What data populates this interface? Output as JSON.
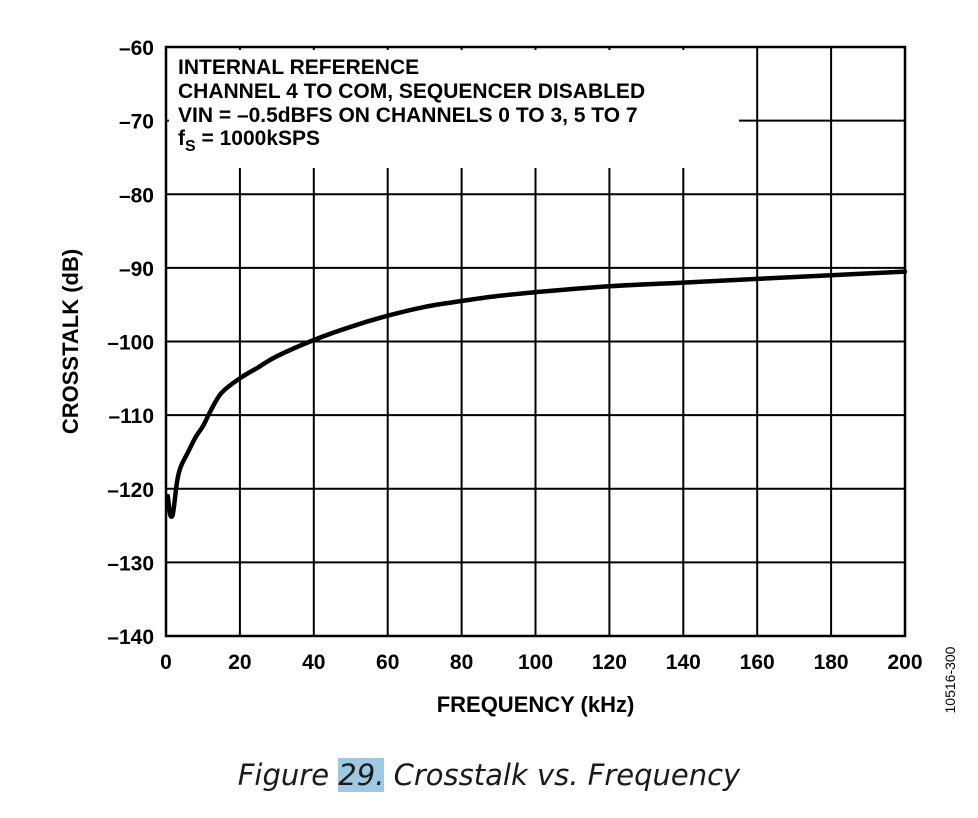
{
  "chart_data": {
    "type": "line",
    "title": "",
    "xlabel": "FREQUENCY (kHz)",
    "ylabel": "CROSSTALK (dB)",
    "xlim": [
      0,
      200
    ],
    "ylim": [
      -140,
      -60
    ],
    "xticks": [
      0,
      20,
      40,
      60,
      80,
      100,
      120,
      140,
      160,
      180,
      200
    ],
    "yticks": [
      -140,
      -130,
      -120,
      -110,
      -100,
      -90,
      -80,
      -70,
      -60
    ],
    "x_tick_labels": [
      "0",
      "20",
      "40",
      "60",
      "80",
      "100",
      "120",
      "140",
      "160",
      "180",
      "200"
    ],
    "y_tick_labels": [
      "–140",
      "–130",
      "–120",
      "–110",
      "–100",
      "–90",
      "–80",
      "–70",
      "–60"
    ],
    "grid": true,
    "annotations": {
      "line1": "INTERNAL REFERENCE",
      "line2": "CHANNEL 4 TO COM, SEQUENCER DISABLED",
      "line3": "VIN = –0.5dBFS ON CHANNELS 0 TO 3, 5 TO 7",
      "line4_main": "f",
      "line4_sub": "S",
      "line4_rest": " = 1000kSPS"
    },
    "series": [
      {
        "x": [
          0.5,
          1,
          1.5,
          2,
          3,
          4,
          6,
          8,
          10,
          12,
          15,
          20,
          25,
          30,
          40,
          50,
          60,
          70,
          80,
          90,
          100,
          120,
          140,
          160,
          180,
          200
        ],
        "values": [
          -121,
          -123.2,
          -123.8,
          -123,
          -119,
          -117,
          -115,
          -113,
          -111.5,
          -109.5,
          -107,
          -105,
          -103.5,
          -102,
          -99.8,
          -98,
          -96.5,
          -95.3,
          -94.5,
          -93.8,
          -93.3,
          -92.5,
          -92,
          -91.5,
          -91,
          -90.5
        ]
      }
    ],
    "colors": {
      "line": "#000000",
      "axis": "#000000",
      "grid": "#000000"
    }
  },
  "figure_id": "10516-300",
  "caption": {
    "number": "29.",
    "prefix": "Figure ",
    "rest": " Crosstalk vs. Frequency"
  }
}
